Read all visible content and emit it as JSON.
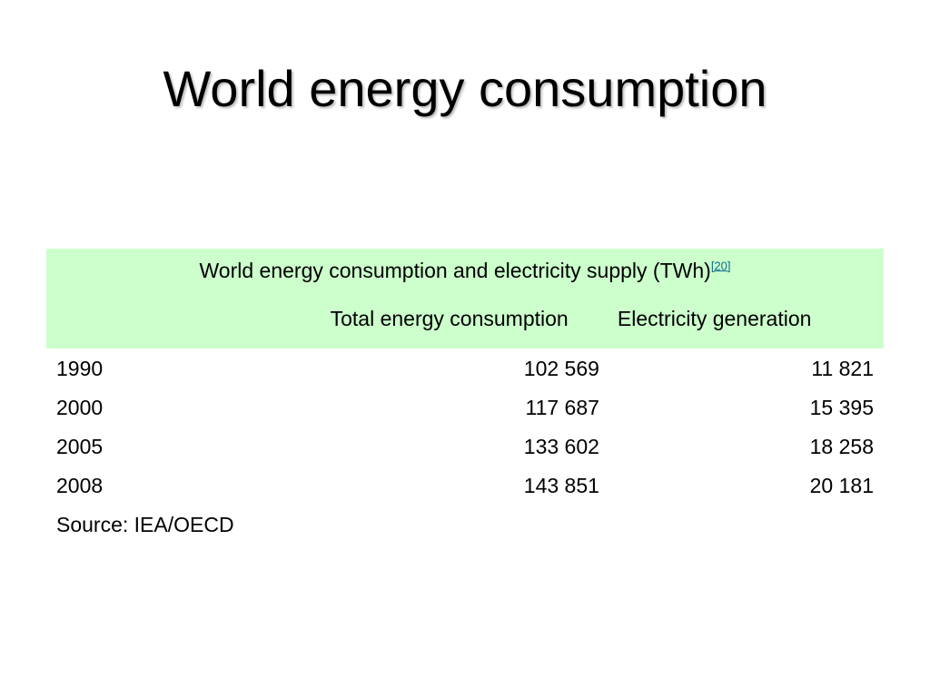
{
  "slide": {
    "title": "World energy consumption"
  },
  "table": {
    "caption": "World energy consumption and electricity supply (TWh)",
    "caption_ref": "[20]",
    "headers": {
      "year": "",
      "total": "Total energy consumption",
      "electricity": "Electricity generation"
    },
    "rows": [
      {
        "year": "1990",
        "total": "102 569",
        "electricity": "11 821"
      },
      {
        "year": "2000",
        "total": "117 687",
        "electricity": "15 395"
      },
      {
        "year": "2005",
        "total": "133 602",
        "electricity": "18 258"
      },
      {
        "year": "2008",
        "total": "143 851",
        "electricity": "20 181"
      }
    ],
    "source": "Source: IEA/OECD"
  },
  "colors": {
    "header_background": "#ccffcc",
    "reference_link": "#0b6b8a",
    "text": "#000000",
    "background": "#ffffff"
  }
}
